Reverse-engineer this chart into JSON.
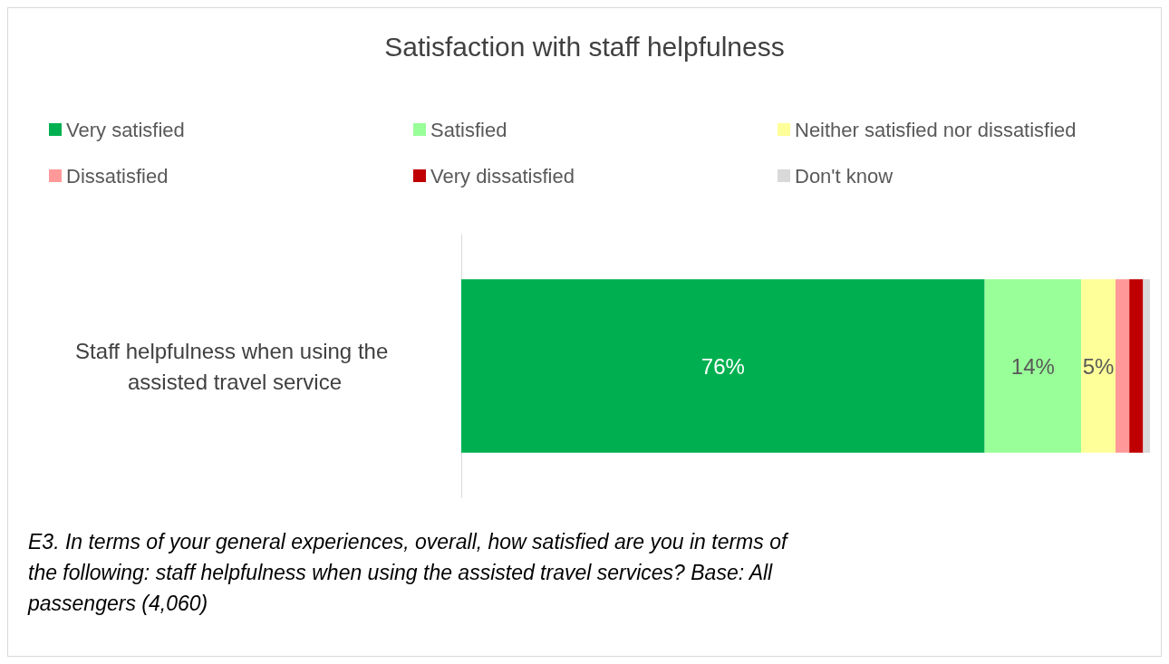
{
  "chart_data": {
    "type": "bar",
    "orientation": "horizontal",
    "stacked": true,
    "title": "Satisfaction with staff helpfulness",
    "categories": [
      "Staff helpfulness when using the assisted travel service"
    ],
    "series": [
      {
        "name": "Very satisfied",
        "color": "#00b050",
        "values": [
          76
        ],
        "value_labels": [
          "76%"
        ]
      },
      {
        "name": "Satisfied",
        "color": "#99ff99",
        "values": [
          14
        ],
        "value_labels": [
          "14%"
        ]
      },
      {
        "name": "Neither satisfied nor dissatisfied",
        "color": "#ffff99",
        "values": [
          5
        ],
        "value_labels": [
          "5%"
        ]
      },
      {
        "name": "Dissatisfied",
        "color": "#ff9999",
        "values": [
          2
        ],
        "value_labels": [
          null
        ]
      },
      {
        "name": "Very dissatisfied",
        "color": "#c00000",
        "values": [
          2
        ],
        "value_labels": [
          null
        ]
      },
      {
        "name": "Don't know",
        "color": "#d9d9d9",
        "values": [
          1
        ],
        "value_labels": [
          null
        ]
      }
    ],
    "xlim": [
      0,
      100
    ],
    "tick_labels": "y",
    "grid": false,
    "legend": "top",
    "annotations": [
      "E3. In terms of your general experiences, overall, how satisfied are you in terms of the following: staff helpfulness when using the assisted travel services? Base: All passengers (4,060)"
    ]
  }
}
